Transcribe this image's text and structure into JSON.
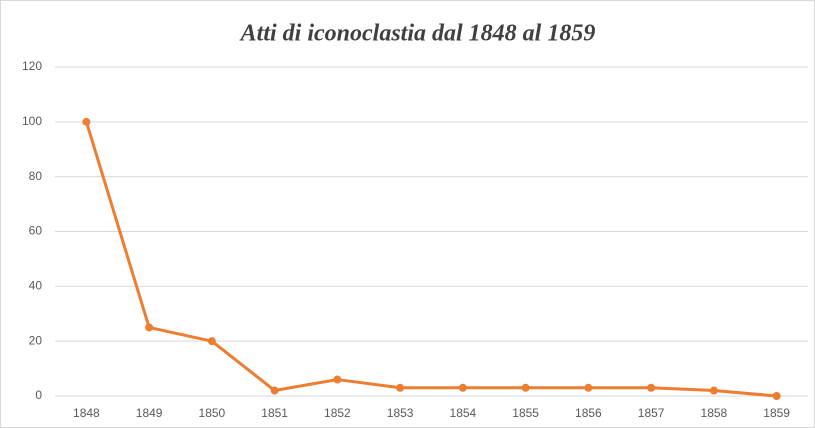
{
  "chart_data": {
    "type": "line",
    "title": "Atti di iconoclastia dal 1848 al 1859",
    "categories": [
      "1848",
      "1849",
      "1850",
      "1851",
      "1852",
      "1853",
      "1854",
      "1855",
      "1856",
      "1857",
      "1858",
      "1859"
    ],
    "values": [
      100,
      25,
      20,
      2,
      6,
      3,
      3,
      3,
      3,
      3,
      2,
      0
    ],
    "color": "#ed7d31",
    "ylim": [
      0,
      120
    ],
    "yticks": [
      0,
      20,
      40,
      60,
      80,
      100,
      120
    ],
    "grid": true
  }
}
